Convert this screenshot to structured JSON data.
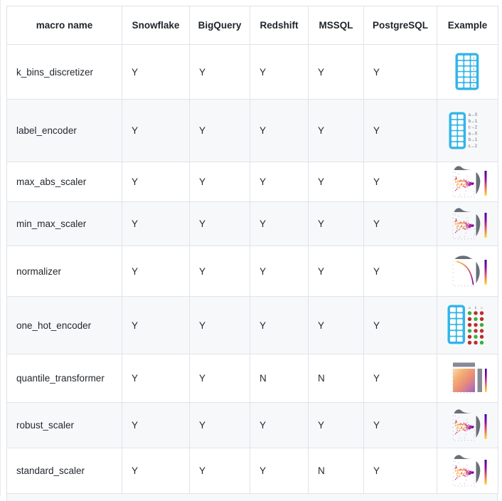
{
  "table": {
    "columns": [
      {
        "key": "name",
        "label": "macro name"
      },
      {
        "key": "snowflake",
        "label": "Snowflake"
      },
      {
        "key": "bigquery",
        "label": "BigQuery"
      },
      {
        "key": "redshift",
        "label": "Redshift"
      },
      {
        "key": "mssql",
        "label": "MSSQL"
      },
      {
        "key": "postgresql",
        "label": "PostgreSQL"
      },
      {
        "key": "example",
        "label": "Example"
      }
    ],
    "rows": [
      {
        "name": "k_bins_discretizer",
        "support": [
          "Y",
          "Y",
          "Y",
          "Y",
          "Y"
        ],
        "icon": "binned-table-icon",
        "icon_labels": [
          "1",
          "2",
          "3",
          "4",
          "5",
          "6"
        ]
      },
      {
        "name": "label_encoder",
        "support": [
          "Y",
          "Y",
          "Y",
          "Y",
          "Y"
        ],
        "icon": "label-mapping-table-icon",
        "icon_labels": [
          "a→0",
          "b→1",
          "c→2",
          "a→0",
          "b→1",
          "c→2"
        ]
      },
      {
        "name": "max_abs_scaler",
        "support": [
          "Y",
          "Y",
          "Y",
          "Y",
          "Y"
        ],
        "icon": "scatter-jointplot-icon"
      },
      {
        "name": "min_max_scaler",
        "support": [
          "Y",
          "Y",
          "Y",
          "Y",
          "Y"
        ],
        "icon": "scatter-jointplot-icon"
      },
      {
        "name": "normalizer",
        "support": [
          "Y",
          "Y",
          "Y",
          "Y",
          "Y"
        ],
        "icon": "arc-jointplot-icon"
      },
      {
        "name": "one_hot_encoder",
        "support": [
          "Y",
          "Y",
          "Y",
          "Y",
          "Y"
        ],
        "icon": "onehot-dots-table-icon",
        "icon_labels": [
          "a",
          "b",
          "c"
        ]
      },
      {
        "name": "quantile_transformer",
        "support": [
          "Y",
          "Y",
          "N",
          "N",
          "Y"
        ],
        "icon": "uniform-heatmap-icon"
      },
      {
        "name": "robust_scaler",
        "support": [
          "Y",
          "Y",
          "Y",
          "Y",
          "Y"
        ],
        "icon": "scatter-jointplot-icon"
      },
      {
        "name": "standard_scaler",
        "support": [
          "Y",
          "Y",
          "Y",
          "N",
          "Y"
        ],
        "icon": "scatter-jointplot-icon"
      }
    ],
    "colors": {
      "accent_cyan": "#32b5e8",
      "stripe": "#f7f8fa",
      "border": "#e0e3e8",
      "header_text": "#1f242b",
      "body_text": "#24292f",
      "dot_green": "#33b240",
      "dot_red": "#bf2b2d",
      "density_gray": "#696f77",
      "bar_gray": "#868b93",
      "colorbar_top": "#3a049a",
      "colorbar_mid": "#cc4778",
      "colorbar_bottom": "#f7e225"
    }
  }
}
